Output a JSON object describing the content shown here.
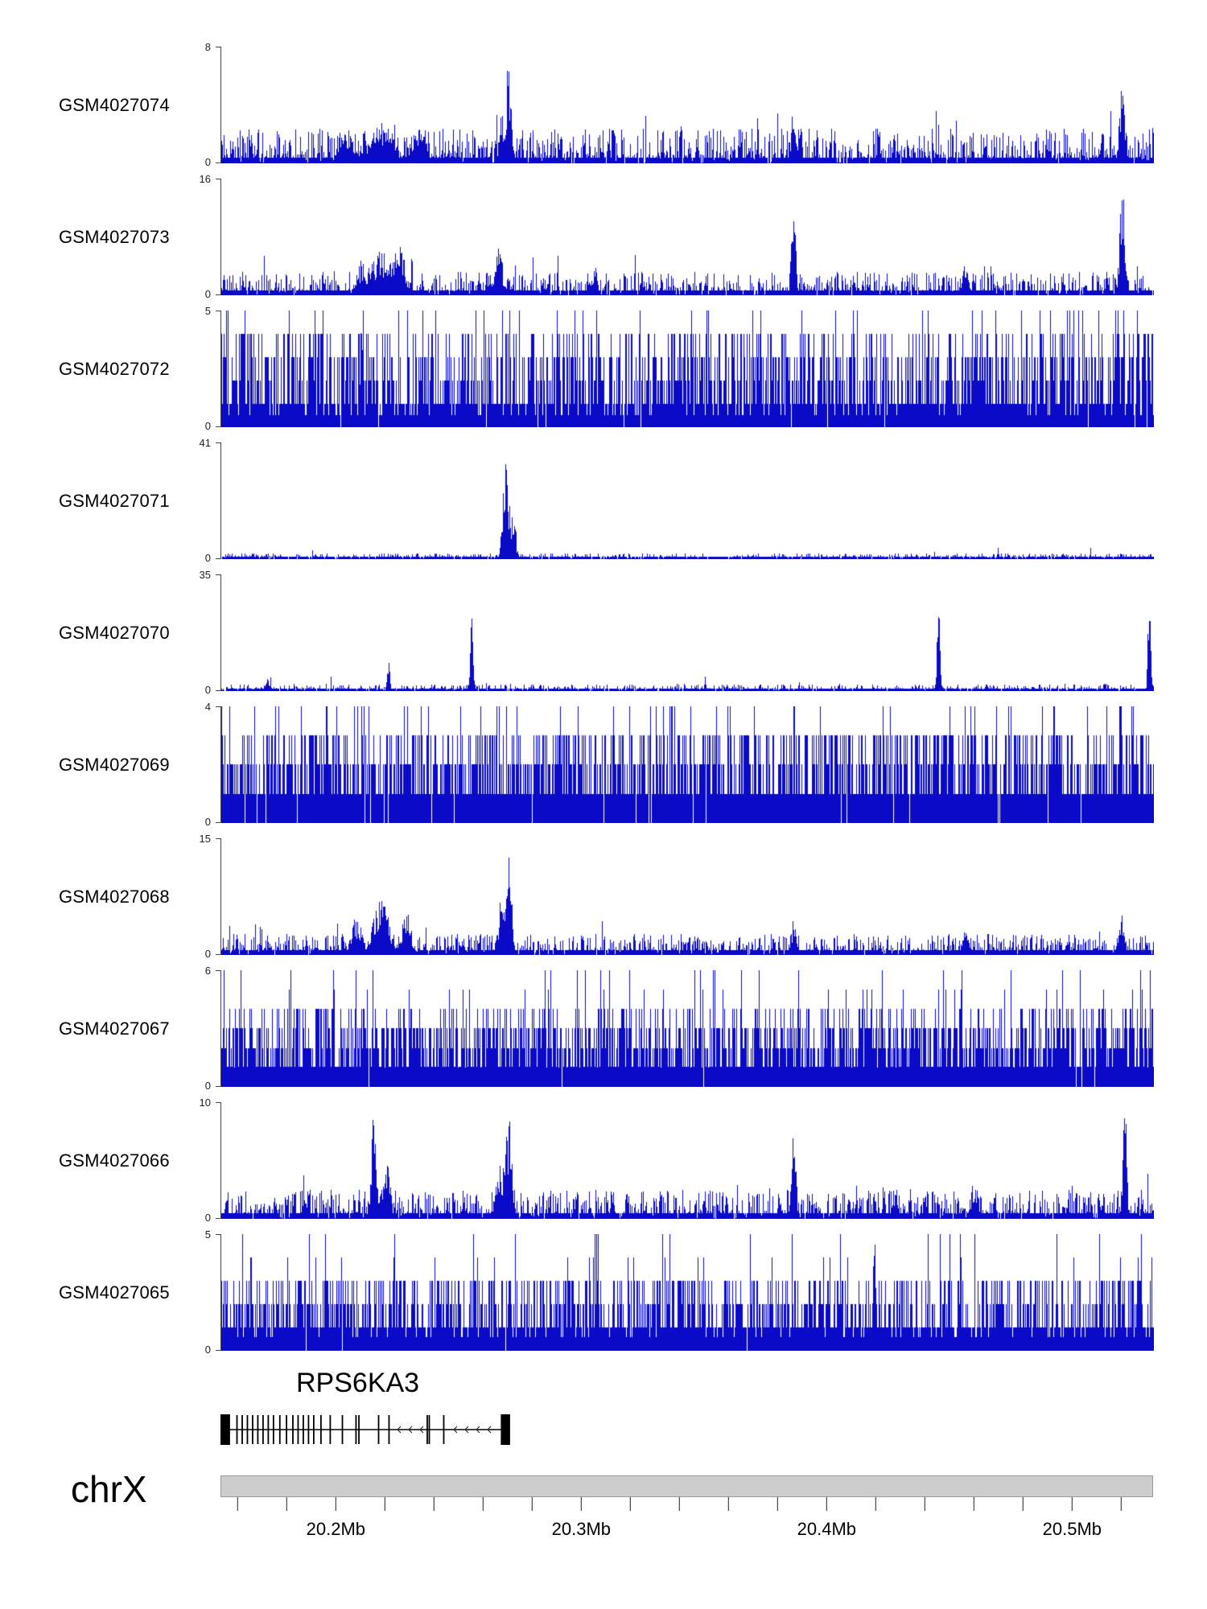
{
  "chart_data": {
    "type": "area",
    "title": "",
    "description": "Genome-browser read-coverage tracks for ten GEO samples across chrX 20.15-20.53 Mb spanning the RPS6KA3 gene",
    "signal_color": "#0a0ac8",
    "axis_color": "#444444",
    "chromosome_bar_color": "#cdcdcd",
    "x_range_mb": [
      20.153,
      20.533
    ],
    "x_minor_tick_step_mb": 0.02,
    "x_major_ticks": [
      {
        "mb": 20.2,
        "label": "20.2Mb"
      },
      {
        "mb": 20.3,
        "label": "20.3Mb"
      },
      {
        "mb": 20.4,
        "label": "20.4Mb"
      },
      {
        "mb": 20.5,
        "label": "20.5Mb"
      }
    ],
    "chromosome": "chrX",
    "gene": {
      "name": "RPS6KA3",
      "strand": "-",
      "start_mb": 20.153,
      "end_mb": 20.271,
      "utr_boxes": [
        [
          0,
          0.033
        ],
        [
          0.968,
          1.0
        ]
      ],
      "exon_ticks": [
        0.057,
        0.075,
        0.093,
        0.111,
        0.129,
        0.147,
        0.165,
        0.183,
        0.205,
        0.228,
        0.25,
        0.268,
        0.286,
        0.304,
        0.322,
        0.347,
        0.379,
        0.421,
        0.468,
        0.478,
        0.546,
        0.582,
        0.714,
        0.721,
        0.771
      ]
    },
    "tracks": [
      {
        "label": "GSM4027074",
        "ylim": [
          0,
          8
        ],
        "seed": 101,
        "density": 0.9,
        "base": 0.3,
        "shape": 1.7,
        "spike_prob": 0.02,
        "spike_h": 0.45,
        "floor": 0.05,
        "floor_density": 0.85,
        "peaks": [
          {
            "mb": 20.27,
            "h": 1.0,
            "w_mb": 0.0015
          },
          {
            "mb": 20.267,
            "h": 0.45,
            "w_mb": 0.0015
          },
          {
            "mb": 20.386,
            "h": 0.55,
            "w_mb": 0.0012
          },
          {
            "mb": 20.52,
            "h": 0.8,
            "w_mb": 0.0015
          },
          {
            "mb": 20.218,
            "h": 0.35,
            "w_mb": 0.007
          },
          {
            "mb": 20.233,
            "h": 0.3,
            "w_mb": 0.005
          },
          {
            "mb": 20.204,
            "h": 0.3,
            "w_mb": 0.004
          }
        ]
      },
      {
        "label": "GSM4027073",
        "ylim": [
          0,
          16
        ],
        "seed": 102,
        "density": 0.88,
        "base": 0.2,
        "shape": 1.9,
        "spike_prob": 0.012,
        "spike_h": 0.35,
        "floor": 0.04,
        "floor_density": 0.85,
        "peaks": [
          {
            "mb": 20.386,
            "h": 1.0,
            "w_mb": 0.0012
          },
          {
            "mb": 20.52,
            "h": 0.95,
            "w_mb": 0.0015
          },
          {
            "mb": 20.218,
            "h": 0.4,
            "w_mb": 0.007
          },
          {
            "mb": 20.225,
            "h": 0.45,
            "w_mb": 0.004
          },
          {
            "mb": 20.266,
            "h": 0.42,
            "w_mb": 0.0022
          },
          {
            "mb": 20.456,
            "h": 0.32,
            "w_mb": 0.0022
          },
          {
            "mb": 20.305,
            "h": 0.28,
            "w_mb": 0.0015
          },
          {
            "mb": 20.21,
            "h": 0.3,
            "w_mb": 0.003
          }
        ]
      },
      {
        "label": "GSM4027072",
        "ylim": [
          0,
          5
        ],
        "seed": 103,
        "density": 0.9,
        "base": 0.8,
        "shape": 1.3,
        "quant": 5,
        "spike_prob": 0.12,
        "spike_h": 1.0,
        "floor": 0.1,
        "floor_density": 0.9,
        "peaks": [
          {
            "mb": 20.21,
            "h": 1.0,
            "w_mb": 0.0008
          }
        ]
      },
      {
        "label": "GSM4027071",
        "ylim": [
          0,
          41
        ],
        "seed": 104,
        "density": 0.8,
        "base": 0.05,
        "shape": 2.0,
        "spike_prob": 0.003,
        "spike_h": 0.1,
        "floor": 0.02,
        "floor_density": 0.85,
        "peaks": [
          {
            "mb": 20.269,
            "h": 1.0,
            "w_mb": 0.0018
          },
          {
            "mb": 20.272,
            "h": 0.5,
            "w_mb": 0.0012
          }
        ]
      },
      {
        "label": "GSM4027070",
        "ylim": [
          0,
          35
        ],
        "seed": 105,
        "density": 0.8,
        "base": 0.06,
        "shape": 2.0,
        "spike_prob": 0.006,
        "spike_h": 0.15,
        "floor": 0.02,
        "floor_density": 0.85,
        "peaks": [
          {
            "mb": 20.255,
            "h": 0.97,
            "w_mb": 0.0008
          },
          {
            "mb": 20.445,
            "h": 1.0,
            "w_mb": 0.0008
          },
          {
            "mb": 20.531,
            "h": 0.97,
            "w_mb": 0.0008
          },
          {
            "mb": 20.221,
            "h": 0.26,
            "w_mb": 0.0008
          },
          {
            "mb": 20.172,
            "h": 0.12,
            "w_mb": 0.0012
          }
        ]
      },
      {
        "label": "GSM4027069",
        "ylim": [
          0,
          4
        ],
        "seed": 106,
        "density": 0.9,
        "base": 0.75,
        "shape": 1.0,
        "quant": 4,
        "spike_prob": 0.15,
        "spike_h": 1.0,
        "floor": 0.25,
        "floor_density": 0.8,
        "peaks": []
      },
      {
        "label": "GSM4027068",
        "ylim": [
          0,
          15
        ],
        "seed": 107,
        "density": 0.9,
        "base": 0.18,
        "shape": 1.8,
        "spike_prob": 0.01,
        "spike_h": 0.3,
        "floor": 0.04,
        "floor_density": 0.85,
        "peaks": [
          {
            "mb": 20.27,
            "h": 1.0,
            "w_mb": 0.0015
          },
          {
            "mb": 20.267,
            "h": 0.5,
            "w_mb": 0.0022
          },
          {
            "mb": 20.218,
            "h": 0.5,
            "w_mb": 0.0045
          },
          {
            "mb": 20.208,
            "h": 0.35,
            "w_mb": 0.003
          },
          {
            "mb": 20.228,
            "h": 0.4,
            "w_mb": 0.003
          },
          {
            "mb": 20.386,
            "h": 0.3,
            "w_mb": 0.0015
          },
          {
            "mb": 20.52,
            "h": 0.42,
            "w_mb": 0.0015
          },
          {
            "mb": 20.456,
            "h": 0.2,
            "w_mb": 0.002
          }
        ]
      },
      {
        "label": "GSM4027067",
        "ylim": [
          0,
          6
        ],
        "seed": 108,
        "density": 0.96,
        "base": 0.6,
        "shape": 0.9,
        "quant": 6,
        "spike_prob": 0.08,
        "spike_h": 1.0,
        "floor": 0.17,
        "floor_density": 0.9,
        "peaks": []
      },
      {
        "label": "GSM4027066",
        "ylim": [
          0,
          10
        ],
        "seed": 109,
        "density": 0.9,
        "base": 0.25,
        "shape": 1.7,
        "spike_prob": 0.012,
        "spike_h": 0.4,
        "floor": 0.05,
        "floor_density": 0.85,
        "peaks": [
          {
            "mb": 20.215,
            "h": 1.0,
            "w_mb": 0.0015
          },
          {
            "mb": 20.22,
            "h": 0.6,
            "w_mb": 0.0022
          },
          {
            "mb": 20.27,
            "h": 1.0,
            "w_mb": 0.0018
          },
          {
            "mb": 20.267,
            "h": 0.5,
            "w_mb": 0.003
          },
          {
            "mb": 20.386,
            "h": 0.72,
            "w_mb": 0.0015
          },
          {
            "mb": 20.521,
            "h": 1.0,
            "w_mb": 0.0012
          },
          {
            "mb": 20.46,
            "h": 0.3,
            "w_mb": 0.0022
          },
          {
            "mb": 20.427,
            "h": 0.25,
            "w_mb": 0.0018
          }
        ]
      },
      {
        "label": "GSM4027065",
        "ylim": [
          0,
          5
        ],
        "seed": 110,
        "density": 0.93,
        "base": 0.6,
        "shape": 1.3,
        "quant": 5,
        "spike_prob": 0.07,
        "spike_h": 0.95,
        "floor": 0.12,
        "floor_density": 0.9,
        "peaks": [
          {
            "mb": 20.419,
            "h": 1.0,
            "w_mb": 0.0008
          }
        ]
      }
    ]
  }
}
